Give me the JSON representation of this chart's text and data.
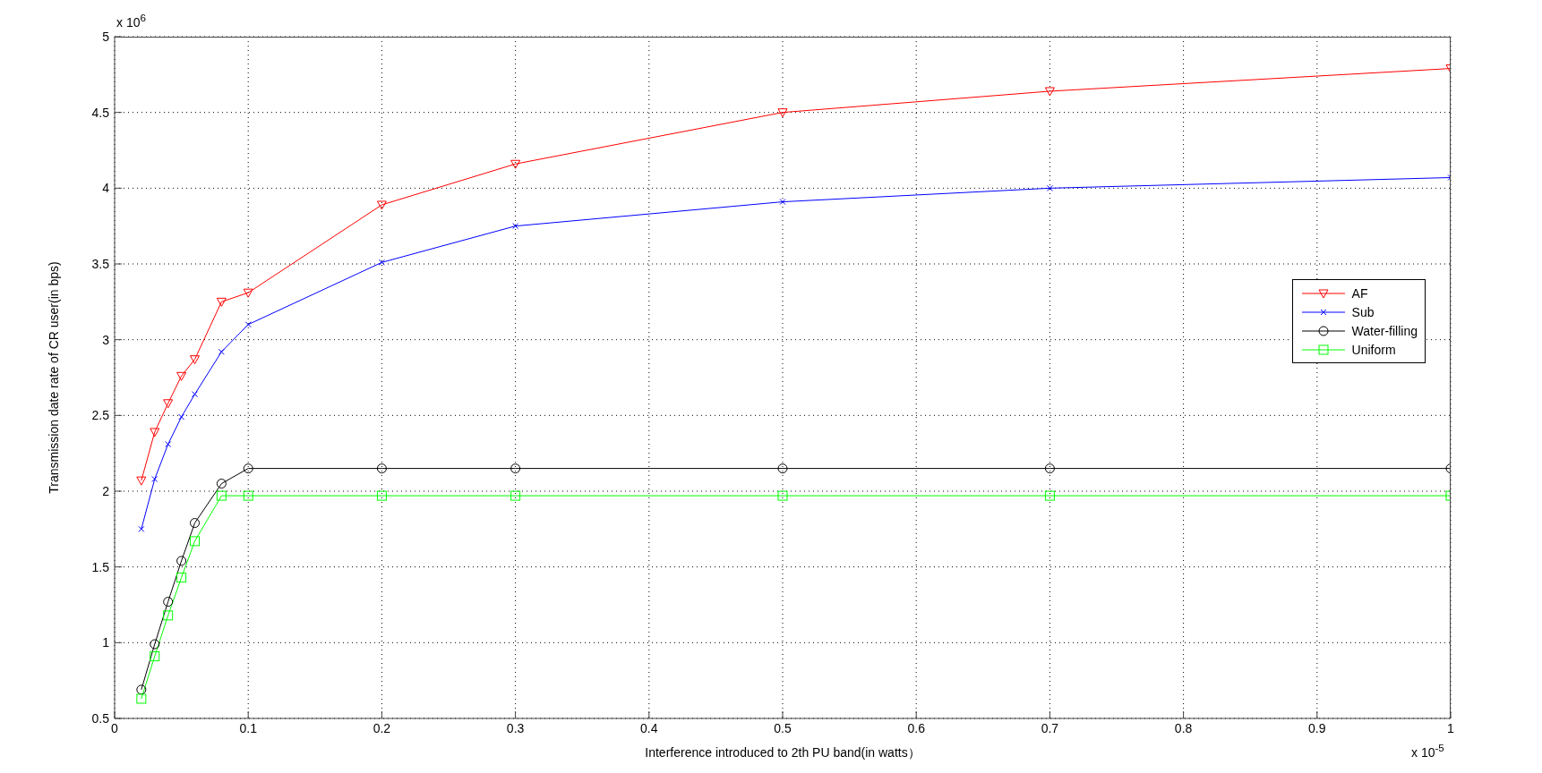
{
  "chart_data": {
    "type": "line",
    "xlabel": "Interference introduced to 2th PU band(in watts）",
    "ylabel": "Transmission date rate of CR user(in bps)",
    "x": [
      0.02,
      0.03,
      0.04,
      0.05,
      0.06,
      0.08,
      0.1,
      0.2,
      0.3,
      0.5,
      0.7,
      1.0
    ],
    "series": [
      {
        "name": "AF",
        "color": "#ff0000",
        "marker": "triangle",
        "values": [
          2.07,
          2.39,
          2.58,
          2.76,
          2.87,
          3.25,
          3.31,
          3.89,
          4.16,
          4.5,
          4.64,
          4.79
        ]
      },
      {
        "name": "Sub",
        "color": "#0000ff",
        "marker": "cross",
        "values": [
          1.75,
          2.08,
          2.31,
          2.49,
          2.64,
          2.92,
          3.1,
          3.51,
          3.75,
          3.91,
          4.0,
          4.07
        ]
      },
      {
        "name": "Water-filling",
        "color": "#000000",
        "marker": "circle",
        "values": [
          0.69,
          0.99,
          1.27,
          1.54,
          1.79,
          2.05,
          2.15,
          2.15,
          2.15,
          2.15,
          2.15,
          2.15
        ]
      },
      {
        "name": "Uniform",
        "color": "#00ff00",
        "marker": "square",
        "values": [
          0.63,
          0.91,
          1.18,
          1.43,
          1.67,
          1.97,
          1.97,
          1.97,
          1.97,
          1.97,
          1.97,
          1.97
        ]
      }
    ],
    "xlim": [
      0,
      1
    ],
    "xticks": [
      0,
      0.1,
      0.2,
      0.3,
      0.4,
      0.5,
      0.6,
      0.7,
      0.8,
      0.9,
      1
    ],
    "ylim": [
      0.5,
      5
    ],
    "yticks": [
      0.5,
      1,
      1.5,
      2,
      2.5,
      3,
      3.5,
      4,
      4.5,
      5
    ],
    "grid": true,
    "legend": "right",
    "line_style": "solid",
    "annotations": [
      "x 10$^{6}$",
      "x 10$^{-5}$"
    ]
  }
}
